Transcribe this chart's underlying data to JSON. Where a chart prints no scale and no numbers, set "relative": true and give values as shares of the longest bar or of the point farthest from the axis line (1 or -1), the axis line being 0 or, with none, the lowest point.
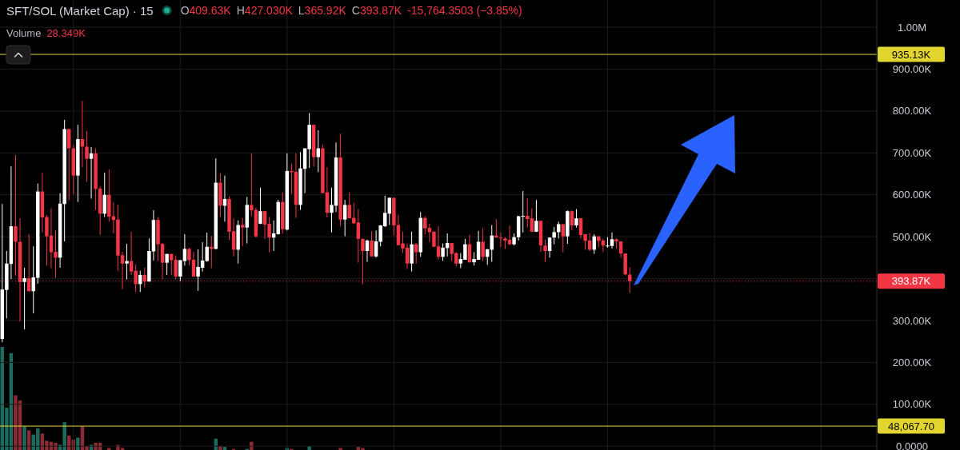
{
  "chart_data": [
    {
      "type": "candlestick",
      "title": "SFT/SOL (Market Cap) · 15",
      "annotations": [
        "O409.63K",
        "H427.030K",
        "L365.92K",
        "C393.87K",
        "-15,764.3503 (−3.85%)"
      ],
      "categories": [
        null,
        null,
        null,
        null,
        null,
        null,
        null,
        null,
        null,
        null,
        null,
        null,
        null,
        null,
        null,
        null,
        null,
        null,
        null,
        null,
        null,
        null,
        null,
        null,
        null,
        null,
        null,
        null,
        null,
        null,
        null,
        null,
        null,
        null,
        null,
        null,
        null,
        null,
        null,
        null,
        null,
        null,
        null,
        null,
        null,
        null,
        null,
        null,
        null,
        null,
        null,
        null,
        null,
        null,
        null,
        null,
        null,
        null,
        null,
        null,
        null,
        null,
        null,
        null,
        null,
        null,
        null,
        null,
        null,
        null,
        null,
        null,
        null,
        null,
        null,
        null,
        null,
        null,
        null,
        null,
        null,
        null,
        null,
        null,
        null,
        null,
        null,
        null,
        null,
        null,
        null,
        null,
        null,
        null,
        null,
        null,
        null,
        null,
        null,
        null,
        null,
        null,
        null,
        null,
        null,
        null,
        null,
        null,
        null,
        null,
        null,
        null,
        null,
        null,
        null,
        null,
        null,
        null,
        null,
        null,
        null,
        null,
        null,
        null,
        null,
        null,
        null,
        null,
        null,
        null,
        null,
        null,
        null,
        null,
        null,
        null,
        null,
        null,
        null,
        null,
        null,
        null,
        null,
        null,
        null,
        null,
        null,
        null,
        null,
        null,
        null,
        null,
        null,
        null,
        null,
        null,
        null,
        null,
        null,
        null,
        null,
        null,
        null,
        null,
        null,
        null,
        null,
        null,
        null,
        null,
        null,
        null,
        null,
        null,
        null,
        null,
        null,
        null,
        null,
        null,
        null,
        null,
        null,
        null,
        null,
        null,
        null,
        null,
        null,
        null,
        null,
        null,
        null,
        null,
        null,
        null,
        null
      ],
      "ohlc": [
        [
          256000,
          578000,
          248000,
          374000
        ],
        [
          373000,
          466000,
          305000,
          436000
        ],
        [
          435000,
          668000,
          399000,
          525000
        ],
        [
          525000,
          695000,
          407000,
          488000
        ],
        [
          488000,
          544000,
          298000,
          392000
        ],
        [
          392000,
          426000,
          279000,
          401000
        ],
        [
          401000,
          506000,
          369000,
          370000
        ],
        [
          370000,
          477000,
          317000,
          403000
        ],
        [
          402000,
          627000,
          388000,
          608000
        ],
        [
          608000,
          653000,
          510000,
          546000
        ],
        [
          547000,
          552000,
          431000,
          501000
        ],
        [
          503000,
          568000,
          425000,
          463000
        ],
        [
          464000,
          515000,
          402000,
          450000
        ],
        [
          450000,
          604000,
          426000,
          579000
        ],
        [
          578000,
          779000,
          489000,
          757000
        ],
        [
          757000,
          757000,
          587000,
          711000
        ],
        [
          711000,
          719000,
          601000,
          646000
        ],
        [
          646000,
          767000,
          583000,
          733000
        ],
        [
          733000,
          824000,
          666000,
          715000
        ],
        [
          715000,
          752000,
          631000,
          686000
        ],
        [
          686000,
          714000,
          591000,
          699000
        ],
        [
          699000,
          711000,
          564000,
          614000
        ],
        [
          615000,
          620000,
          504000,
          555000
        ],
        [
          555000,
          653000,
          547000,
          600000
        ],
        [
          600000,
          661000,
          536000,
          548000
        ],
        [
          549000,
          582000,
          508000,
          540000
        ],
        [
          541000,
          576000,
          419000,
          455000
        ],
        [
          456000,
          464000,
          375000,
          436000
        ],
        [
          436000,
          483000,
          398000,
          442000
        ],
        [
          442000,
          512000,
          409000,
          417000
        ],
        [
          419000,
          434000,
          368000,
          387000
        ],
        [
          387000,
          419000,
          368000,
          409000
        ],
        [
          409000,
          426000,
          379000,
          393000
        ],
        [
          393000,
          496000,
          393000,
          466000
        ],
        [
          465000,
          563000,
          443000,
          540000
        ],
        [
          540000,
          547000,
          442000,
          482000
        ],
        [
          483000,
          485000,
          398000,
          438000
        ],
        [
          438000,
          459000,
          409000,
          459000
        ],
        [
          459000,
          459000,
          409000,
          444000
        ],
        [
          445000,
          455000,
          398000,
          405000
        ],
        [
          405000,
          445000,
          394000,
          444000
        ],
        [
          442000,
          506000,
          431000,
          471000
        ],
        [
          471000,
          474000,
          431000,
          444000
        ],
        [
          445000,
          464000,
          404000,
          405000
        ],
        [
          405000,
          470000,
          371000,
          428000
        ],
        [
          426000,
          487000,
          417000,
          443000
        ],
        [
          442000,
          510000,
          440000,
          476000
        ],
        [
          476000,
          502000,
          425000,
          471000
        ],
        [
          471000,
          687000,
          470000,
          629000
        ],
        [
          629000,
          651000,
          547000,
          574000
        ],
        [
          574000,
          646000,
          536000,
          590000
        ],
        [
          590000,
          596000,
          492000,
          512000
        ],
        [
          513000,
          544000,
          453000,
          469000
        ],
        [
          469000,
          539000,
          436000,
          528000
        ],
        [
          528000,
          545000,
          478000,
          522000
        ],
        [
          522000,
          595000,
          484000,
          576000
        ],
        [
          576000,
          699000,
          549000,
          563000
        ],
        [
          564000,
          569000,
          498000,
          501000
        ],
        [
          531000,
          617000,
          530000,
          561000
        ],
        [
          561000,
          561000,
          495000,
          529000
        ],
        [
          531000,
          547000,
          463000,
          498000
        ],
        [
          498000,
          539000,
          466000,
          508000
        ],
        [
          506000,
          588000,
          505000,
          583000
        ],
        [
          583000,
          606000,
          508000,
          518000
        ],
        [
          517000,
          699000,
          515000,
          657000
        ],
        [
          657000,
          674000,
          602000,
          654000
        ],
        [
          655000,
          699000,
          545000,
          576000
        ],
        [
          576000,
          702000,
          564000,
          663000
        ],
        [
          662000,
          711000,
          604000,
          711000
        ],
        [
          709000,
          795000,
          664000,
          767000
        ],
        [
          767000,
          767000,
          667000,
          690000
        ],
        [
          690000,
          754000,
          654000,
          711000
        ],
        [
          711000,
          720000,
          604000,
          604000
        ],
        [
          606000,
          666000,
          546000,
          557000
        ],
        [
          557000,
          617000,
          510000,
          576000
        ],
        [
          574000,
          725000,
          559000,
          689000
        ],
        [
          689000,
          746000,
          525000,
          541000
        ],
        [
          541000,
          588000,
          501000,
          576000
        ],
        [
          576000,
          606000,
          544000,
          544000
        ],
        [
          545000,
          581000,
          530000,
          532000
        ],
        [
          534000,
          566000,
          438000,
          495000
        ],
        [
          495000,
          495000,
          387000,
          466000
        ],
        [
          466000,
          493000,
          440000,
          491000
        ],
        [
          491000,
          513000,
          453000,
          453000
        ],
        [
          453000,
          515000,
          450000,
          489000
        ],
        [
          488000,
          528000,
          477000,
          527000
        ],
        [
          525000,
          598000,
          523000,
          557000
        ],
        [
          555000,
          593000,
          528000,
          593000
        ],
        [
          593000,
          593000,
          503000,
          527000
        ],
        [
          528000,
          552000,
          479000,
          480000
        ],
        [
          484000,
          512000,
          461000,
          472000
        ],
        [
          474000,
          484000,
          423000,
          436000
        ],
        [
          436000,
          512000,
          417000,
          482000
        ],
        [
          482000,
          485000,
          436000,
          463000
        ],
        [
          463000,
          559000,
          452000,
          545000
        ],
        [
          545000,
          549000,
          506000,
          520000
        ],
        [
          521000,
          531000,
          487000,
          511000
        ],
        [
          512000,
          513000,
          476000,
          476000
        ],
        [
          477000,
          525000,
          445000,
          452000
        ],
        [
          452000,
          484000,
          442000,
          474000
        ],
        [
          473000,
          508000,
          453000,
          485000
        ],
        [
          485000,
          485000,
          442000,
          459000
        ],
        [
          461000,
          463000,
          429000,
          436000
        ],
        [
          436000,
          461000,
          425000,
          447000
        ],
        [
          445000,
          495000,
          445000,
          482000
        ],
        [
          482000,
          505000,
          438000,
          439000
        ],
        [
          439000,
          463000,
          431000,
          447000
        ],
        [
          445000,
          514000,
          445000,
          488000
        ],
        [
          488000,
          520000,
          442000,
          452000
        ],
        [
          452000,
          471000,
          433000,
          470000
        ],
        [
          469000,
          528000,
          440000,
          503000
        ],
        [
          503000,
          542000,
          498000,
          498000
        ],
        [
          498000,
          510000,
          476000,
          497000
        ],
        [
          496000,
          499000,
          471000,
          491000
        ],
        [
          493000,
          527000,
          480000,
          482000
        ],
        [
          482000,
          508000,
          479000,
          499000
        ],
        [
          499000,
          550000,
          491000,
          549000
        ],
        [
          548000,
          609000,
          510000,
          550000
        ],
        [
          550000,
          592000,
          522000,
          542000
        ],
        [
          544000,
          568000,
          511000,
          512000
        ],
        [
          512000,
          588000,
          511000,
          538000
        ],
        [
          538000,
          538000,
          464000,
          479000
        ],
        [
          479000,
          493000,
          440000,
          466000
        ],
        [
          466000,
          498000,
          450000,
          498000
        ],
        [
          498000,
          523000,
          482000,
          511000
        ],
        [
          511000,
          536000,
          496000,
          530000
        ],
        [
          530000,
          531000,
          463000,
          501000
        ],
        [
          501000,
          563000,
          483000,
          561000
        ],
        [
          561000,
          563000,
          515000,
          527000
        ],
        [
          527000,
          566000,
          522000,
          544000
        ],
        [
          544000,
          544000,
          495000,
          504000
        ],
        [
          506000,
          506000,
          469000,
          490000
        ],
        [
          491000,
          509000,
          466000,
          469000
        ],
        [
          469000,
          506000,
          459000,
          501000
        ],
        [
          501000,
          501000,
          475000,
          490000
        ],
        [
          491000,
          495000,
          464000,
          479000
        ],
        [
          477000,
          499000,
          474000,
          479000
        ],
        [
          478000,
          510000,
          472000,
          494000
        ],
        [
          494000,
          496000,
          472000,
          489000
        ],
        [
          489000,
          489000,
          450000,
          460000
        ],
        [
          460000,
          460000,
          408000,
          410000
        ],
        [
          409630,
          427030,
          365920,
          393870
        ],
        null,
        null,
        null,
        null,
        null,
        null,
        null,
        null,
        null,
        null,
        null,
        null,
        null,
        null,
        null,
        null,
        null,
        null,
        null,
        null,
        null,
        null,
        null,
        null,
        null,
        null,
        null,
        null,
        null,
        null,
        null,
        null,
        null,
        null,
        null,
        null,
        null,
        null,
        null,
        null,
        null,
        null,
        null,
        null,
        null,
        null,
        null,
        null,
        null,
        null,
        null,
        null,
        null,
        null,
        null
      ],
      "colors": [
        "#ffffff",
        "#ffffff",
        "#ffffff",
        "#f23645",
        "#f23645",
        "#ffffff",
        "#f23645",
        "#ffffff",
        "#ffffff",
        "#f23645",
        "#f23645",
        "#f23645",
        "#f23645",
        "#ffffff",
        "#ffffff",
        "#f23645",
        "#f23645",
        "#ffffff",
        "#f23645",
        "#f23645",
        "#ffffff",
        "#f23645",
        "#f23645",
        "#ffffff",
        "#f23645",
        "#f23645",
        "#f23645",
        "#f23645",
        "#ffffff",
        "#f23645",
        "#f23645",
        "#ffffff",
        "#f23645",
        "#ffffff",
        "#ffffff",
        "#f23645",
        "#f23645",
        "#ffffff",
        "#f23645",
        "#f23645",
        "#ffffff",
        "#ffffff",
        "#f23645",
        "#f23645",
        "#ffffff",
        "#ffffff",
        "#ffffff",
        "#f23645",
        "#ffffff",
        "#f23645",
        "#ffffff",
        "#f23645",
        "#f23645",
        "#ffffff",
        "#f23645",
        "#ffffff",
        "#f23645",
        "#f23645",
        "#ffffff",
        "#f23645",
        "#f23645",
        "#ffffff",
        "#ffffff",
        "#f23645",
        "#ffffff",
        "#f23645",
        "#f23645",
        "#ffffff",
        "#ffffff",
        "#ffffff",
        "#f23645",
        "#ffffff",
        "#f23645",
        "#f23645",
        "#ffffff",
        "#ffffff",
        "#f23645",
        "#ffffff",
        "#f23645",
        "#f23645",
        "#f23645",
        "#f23645",
        "#ffffff",
        "#f23645",
        "#ffffff",
        "#ffffff",
        "#ffffff",
        "#ffffff",
        "#f23645",
        "#f23645",
        "#f23645",
        "#f23645",
        "#ffffff",
        "#f23645",
        "#ffffff",
        "#f23645",
        "#f23645",
        "#f23645",
        "#f23645",
        "#ffffff",
        "#ffffff",
        "#f23645",
        "#f23645",
        "#ffffff",
        "#ffffff",
        "#f23645",
        "#ffffff",
        "#ffffff",
        "#f23645",
        "#ffffff",
        "#ffffff",
        "#f23645",
        "#f23645",
        "#f23645",
        "#f23645",
        "#ffffff",
        "#ffffff",
        "#ffffff",
        "#f23645",
        "#f23645",
        "#ffffff",
        "#f23645",
        "#f23645",
        "#ffffff",
        "#ffffff",
        "#ffffff",
        "#f23645",
        "#ffffff",
        "#f23645",
        "#ffffff",
        "#f23645",
        "#f23645",
        "#f23645",
        "#ffffff",
        "#f23645",
        "#f23645",
        "#ffffff",
        "#ffffff",
        "#f23645",
        "#f23645",
        "#f23645",
        "#f23645",
        null,
        null,
        null,
        null,
        null,
        null,
        null,
        null,
        null,
        null,
        null,
        null,
        null,
        null,
        null,
        null,
        null,
        null,
        null,
        null,
        null,
        null,
        null,
        null,
        null,
        null,
        null,
        null,
        null,
        null,
        null,
        null,
        null,
        null,
        null,
        null,
        null,
        null,
        null,
        null,
        null,
        null,
        null,
        null,
        null,
        null,
        null,
        null,
        null,
        null,
        null,
        null,
        null,
        null,
        null
      ],
      "ylim": [
        -9000,
        1065000
      ],
      "yticks": [
        {
          "value": 0,
          "label": "0.0000"
        },
        {
          "value": 100000,
          "label": "100.00K"
        },
        {
          "value": 200000,
          "label": "200.00K"
        },
        {
          "value": 300000,
          "label": "300.00K"
        },
        {
          "value": 400000,
          "label": null
        },
        {
          "value": 500000,
          "label": "500.00K"
        },
        {
          "value": 600000,
          "label": "600.00K"
        },
        {
          "value": 700000,
          "label": "700.00K"
        },
        {
          "value": 800000,
          "label": "800.00K"
        },
        {
          "value": 900000,
          "label": "900.00K"
        },
        {
          "value": 1000000,
          "label": "1.00M"
        }
      ],
      "ref_lines": [
        {
          "axis": "y",
          "value": 935130,
          "label": "935.13K",
          "color": "#e3d530",
          "line_style": "solid"
        },
        {
          "axis": "y",
          "value": 48067.7,
          "label": "48,067.70",
          "color": "#e3d530",
          "line_style": "solid"
        },
        {
          "axis": "y",
          "value": 393870,
          "label": "393.87K",
          "color": "#f23645",
          "line_style": "dotted"
        }
      ],
      "grid": true,
      "tick_labels": "y"
    },
    {
      "type": "bar",
      "title": "Volume",
      "annotations": [
        "28.349K"
      ],
      "relative": true,
      "categories": [
        null,
        null,
        null,
        null,
        null,
        null,
        null,
        null,
        null,
        null,
        null,
        null,
        null,
        null,
        null,
        null,
        null,
        null,
        null,
        null,
        null,
        null,
        null,
        null,
        null,
        null,
        null,
        null,
        null,
        null,
        null,
        null,
        null,
        null,
        null,
        null,
        null,
        null,
        null,
        null,
        null,
        null,
        null,
        null,
        null,
        null,
        null,
        null,
        null,
        null,
        null,
        null,
        null,
        null,
        null,
        null,
        null,
        null,
        null,
        null,
        null,
        null,
        null,
        null,
        null,
        null,
        null,
        null,
        null,
        null,
        null,
        null,
        null,
        null,
        null,
        null,
        null,
        null,
        null,
        null,
        null,
        null,
        null,
        null,
        null,
        null,
        null,
        null,
        null,
        null,
        null,
        null,
        null,
        null,
        null,
        null,
        null,
        null,
        null,
        null,
        null,
        null,
        null,
        null,
        null,
        null,
        null,
        null,
        null,
        null,
        null,
        null,
        null,
        null,
        null,
        null,
        null,
        null,
        null,
        null,
        null,
        null,
        null,
        null,
        null,
        null,
        null,
        null,
        null,
        null,
        null,
        null,
        null,
        null,
        null,
        null,
        null,
        null,
        null,
        null,
        null,
        null,
        null,
        null,
        null,
        null,
        null,
        null,
        null,
        null,
        null,
        null,
        null,
        null,
        null,
        null,
        null,
        null,
        null,
        null,
        null,
        null,
        null,
        null,
        null,
        null,
        null,
        null,
        null,
        null,
        null,
        null,
        null,
        null,
        null,
        null,
        null,
        null,
        null,
        null,
        null,
        null,
        null,
        null,
        null,
        null,
        null,
        null,
        null,
        null,
        null,
        null,
        null,
        null,
        null,
        null,
        null
      ],
      "values": [
        1,
        0.41,
        0.94,
        0.53,
        0.48,
        0.23,
        0.19,
        0.15,
        0.21,
        0.16,
        0.09,
        0.08,
        0.07,
        0.05,
        0.27,
        0.14,
        0.1,
        0.12,
        0.23,
        0.04,
        0.05,
        0.07,
        0.07,
        0,
        0.02,
        0,
        0.05,
        0.02,
        0,
        0,
        0,
        0,
        0,
        0,
        0,
        0,
        0,
        0,
        0,
        0,
        0,
        0,
        0,
        0,
        0,
        0,
        0,
        0,
        0.11,
        0.04,
        0.03,
        0,
        0.01,
        0,
        0,
        0.01,
        0.08,
        0,
        0,
        0,
        0,
        0,
        0,
        0,
        0.02,
        0.01,
        0,
        0,
        0,
        0.04,
        0,
        0,
        0,
        0,
        0,
        0,
        0.02,
        0,
        0,
        0,
        0.03,
        0.02,
        0,
        0,
        0,
        0,
        0,
        0,
        0,
        0,
        0,
        0,
        0,
        0,
        0,
        0,
        0,
        0,
        0,
        0,
        0,
        0,
        0,
        0,
        0,
        0,
        0,
        0,
        0,
        0,
        0,
        0,
        0,
        0,
        0,
        0,
        0,
        0,
        0,
        0,
        0,
        0,
        0,
        0,
        0,
        0,
        0,
        0,
        0,
        0,
        0,
        0,
        0,
        0,
        0,
        0,
        0,
        0,
        0,
        0,
        0,
        0,
        null,
        null,
        null,
        null,
        null,
        null,
        null,
        null,
        null,
        null,
        null,
        null,
        null,
        null,
        null,
        null,
        null,
        null,
        null,
        null,
        null,
        null,
        null,
        null,
        null,
        null,
        null,
        null,
        null,
        null,
        null,
        null,
        null,
        null,
        null,
        null,
        null,
        null,
        null,
        null,
        null,
        null,
        null,
        null,
        null,
        null,
        null,
        null,
        null,
        null,
        null,
        null,
        null,
        null,
        null
      ],
      "colors": [
        "#1b6b5e",
        "#1b6b5e",
        "#1b6b5e",
        "#8c2b35",
        "#8c2b35",
        "#1b6b5e",
        "#8c2b35",
        "#1b6b5e",
        "#1b6b5e",
        "#8c2b35",
        "#8c2b35",
        "#8c2b35",
        "#8c2b35",
        "#1b6b5e",
        "#1b6b5e",
        "#8c2b35",
        "#8c2b35",
        "#1b6b5e",
        "#8c2b35",
        "#8c2b35",
        "#1b6b5e",
        "#8c2b35",
        "#8c2b35",
        "#1b6b5e",
        "#8c2b35",
        "#8c2b35",
        "#8c2b35",
        "#8c2b35",
        "#1b6b5e",
        "#8c2b35",
        "#8c2b35",
        "#1b6b5e",
        "#8c2b35",
        "#1b6b5e",
        "#1b6b5e",
        "#8c2b35",
        "#8c2b35",
        "#1b6b5e",
        "#8c2b35",
        "#8c2b35",
        "#1b6b5e",
        "#1b6b5e",
        "#8c2b35",
        "#8c2b35",
        "#1b6b5e",
        "#1b6b5e",
        "#1b6b5e",
        "#8c2b35",
        "#1b6b5e",
        "#8c2b35",
        "#1b6b5e",
        "#8c2b35",
        "#8c2b35",
        "#1b6b5e",
        "#8c2b35",
        "#1b6b5e",
        "#8c2b35",
        "#8c2b35",
        "#1b6b5e",
        "#8c2b35",
        "#8c2b35",
        "#1b6b5e",
        "#1b6b5e",
        "#8c2b35",
        "#1b6b5e",
        "#8c2b35",
        "#8c2b35",
        "#1b6b5e",
        "#1b6b5e",
        "#1b6b5e",
        "#8c2b35",
        "#1b6b5e",
        "#8c2b35",
        "#8c2b35",
        "#1b6b5e",
        "#1b6b5e",
        "#8c2b35",
        "#1b6b5e",
        "#8c2b35",
        "#8c2b35",
        "#8c2b35",
        "#8c2b35",
        "#1b6b5e",
        "#8c2b35",
        "#1b6b5e",
        "#1b6b5e",
        "#1b6b5e",
        "#1b6b5e",
        "#8c2b35",
        "#8c2b35",
        "#8c2b35",
        "#8c2b35",
        "#1b6b5e",
        "#8c2b35",
        "#1b6b5e",
        "#8c2b35",
        "#8c2b35",
        "#8c2b35",
        "#8c2b35",
        "#1b6b5e",
        "#1b6b5e",
        "#8c2b35",
        "#8c2b35",
        "#1b6b5e",
        "#1b6b5e",
        "#8c2b35",
        "#1b6b5e",
        "#1b6b5e",
        "#8c2b35",
        "#1b6b5e",
        "#1b6b5e",
        "#8c2b35",
        "#8c2b35",
        "#8c2b35",
        "#8c2b35",
        "#1b6b5e",
        "#1b6b5e",
        "#1b6b5e",
        "#8c2b35",
        "#8c2b35",
        "#1b6b5e",
        "#8c2b35",
        "#8c2b35",
        "#1b6b5e",
        "#1b6b5e",
        "#1b6b5e",
        "#8c2b35",
        "#1b6b5e",
        "#8c2b35",
        "#1b6b5e",
        "#8c2b35",
        "#8c2b35",
        "#8c2b35",
        "#1b6b5e",
        "#8c2b35",
        "#8c2b35",
        "#1b6b5e",
        "#1b6b5e",
        "#8c2b35",
        "#8c2b35",
        "#8c2b35",
        "#8c2b35",
        null,
        null,
        null,
        null,
        null,
        null,
        null,
        null,
        null,
        null,
        null,
        null,
        null,
        null,
        null,
        null,
        null,
        null,
        null,
        null,
        null,
        null,
        null,
        null,
        null,
        null,
        null,
        null,
        null,
        null,
        null,
        null,
        null,
        null,
        null,
        null,
        null,
        null,
        null,
        null,
        null,
        null,
        null,
        null,
        null,
        null,
        null,
        null,
        null,
        null,
        null,
        null,
        null,
        null,
        null
      ]
    }
  ]
}
